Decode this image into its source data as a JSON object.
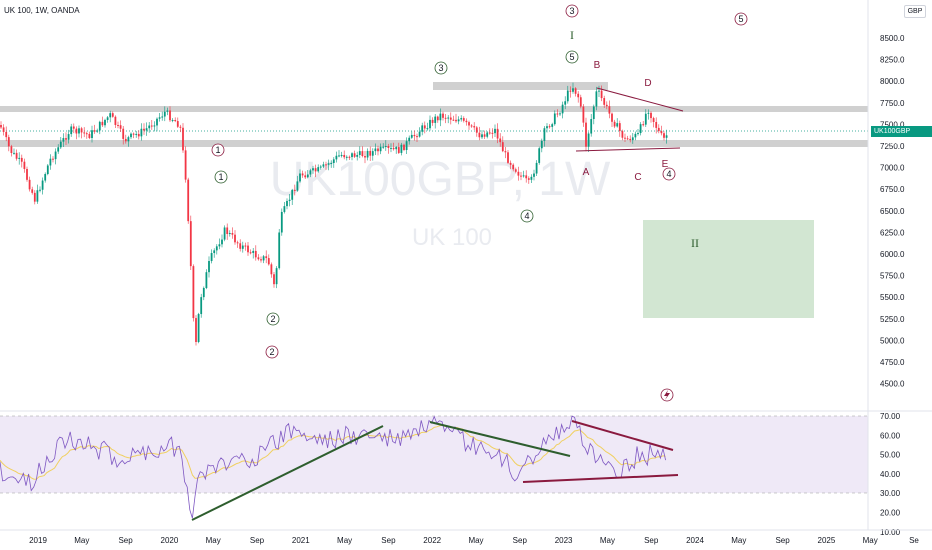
{
  "header": {
    "title": "UK 100, 1W, OANDA",
    "currency_button": "GBP"
  },
  "watermark": {
    "symbol": "UK100GBP, 1W",
    "name": "UK 100"
  },
  "price_tag": {
    "symbol": "UK100GBP",
    "value": "7418.5",
    "color": "#089981"
  },
  "price_axis": [
    "8500.0",
    "8250.0",
    "8000.0",
    "7750.0",
    "7500.0",
    "7250.0",
    "7000.0",
    "6750.0",
    "6500.0",
    "6250.0",
    "6000.0",
    "5750.0",
    "5500.0",
    "5250.0",
    "5000.0",
    "4750.0",
    "4500.0"
  ],
  "rsi_axis": [
    "70.00",
    "60.00",
    "50.00",
    "40.00",
    "30.00",
    "20.00",
    "10.00"
  ],
  "time_axis": [
    "2019",
    "May",
    "Sep",
    "2020",
    "May",
    "Sep",
    "2021",
    "May",
    "Sep",
    "2022",
    "May",
    "Sep",
    "2023",
    "May",
    "Sep",
    "2024",
    "May",
    "Sep",
    "2025",
    "May",
    "Se"
  ],
  "wave_labels": {
    "c1_red": "1",
    "c1_green": "1",
    "c2_green": "2",
    "c2_red": "2",
    "c3_green": "3",
    "c3_red": "3",
    "roman_i": "I",
    "c5_green": "5",
    "c4_green": "4",
    "c5_red": "5",
    "roman_ii": "II",
    "c4_red": "4",
    "a": "A",
    "b": "B",
    "c": "C",
    "d": "D",
    "e": "E"
  },
  "colors": {
    "up": "#089981",
    "down": "#f23645",
    "resistance_band": "#c8c8c8",
    "triangle": "#8a1a3f",
    "green_zone": "#cde3cd",
    "rsi_line": "#7e57c2",
    "rsi_ma": "#f0d060",
    "rsi_band": "#ede7f6",
    "rsi_trend_green": "#2e5e2e",
    "rsi_trend_red": "#8a1a3f",
    "red_circle": "#8a1a3f",
    "green_circle": "#2e5e2e"
  },
  "chart_data": [
    {
      "type": "candlestick",
      "title": "UK 100, 1W, OANDA",
      "ylabel": "GBP",
      "ylim": [
        4400,
        8600
      ],
      "x": [
        "2019",
        "May",
        "Sep",
        "2020",
        "May",
        "Sep",
        "2021",
        "May",
        "Sep",
        "2022",
        "May",
        "Sep",
        "2023",
        "May",
        "Sep",
        "2024"
      ],
      "approx_close": [
        6900,
        7350,
        7200,
        7500,
        5900,
        5850,
        6700,
        7000,
        7100,
        7450,
        7500,
        7000,
        7800,
        7650,
        7550,
        7418.5
      ],
      "last_price": 7418.5
    },
    {
      "type": "line",
      "ylim": [
        10,
        75
      ],
      "levels": [
        70,
        30
      ],
      "x": [
        "2019",
        "May",
        "Sep",
        "2020",
        "May",
        "Sep",
        "2021",
        "May",
        "Sep",
        "2022",
        "May",
        "Sep",
        "2023",
        "May",
        "Sep",
        "2024"
      ],
      "approx_values": [
        38,
        55,
        48,
        60,
        22,
        45,
        55,
        62,
        60,
        58,
        50,
        42,
        62,
        50,
        42,
        46
      ]
    }
  ]
}
